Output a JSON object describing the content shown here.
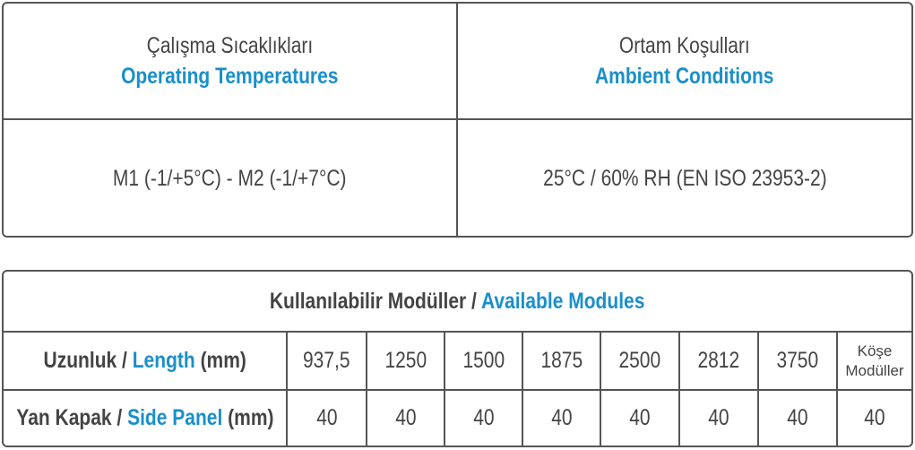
{
  "conditions_table": {
    "headers": [
      {
        "tr": "Çalışma Sıcaklıkları",
        "en": "Operating Temperatures"
      },
      {
        "tr": "Ortam Koşulları",
        "en": "Ambient Conditions"
      }
    ],
    "values": [
      "M1 (-1/+5°C) - M2 (-1/+7°C)",
      "25°C / 60% RH (EN ISO 23953-2)"
    ]
  },
  "modules_table": {
    "title": {
      "tr": "Kullanılabilir Modüller /",
      "en": "Available Modules"
    },
    "rows": [
      {
        "label": {
          "tr": "Uzunluk /",
          "en": "Length",
          "unit": "(mm)"
        },
        "cells": [
          "937,5",
          "1250",
          "1500",
          "1875",
          "2500",
          "2812",
          "3750",
          "Köşe Modüller"
        ]
      },
      {
        "label": {
          "tr": "Yan Kapak /",
          "en": "Side Panel",
          "unit": "(mm)"
        },
        "cells": [
          "40",
          "40",
          "40",
          "40",
          "40",
          "40",
          "40",
          "40"
        ]
      }
    ]
  }
}
